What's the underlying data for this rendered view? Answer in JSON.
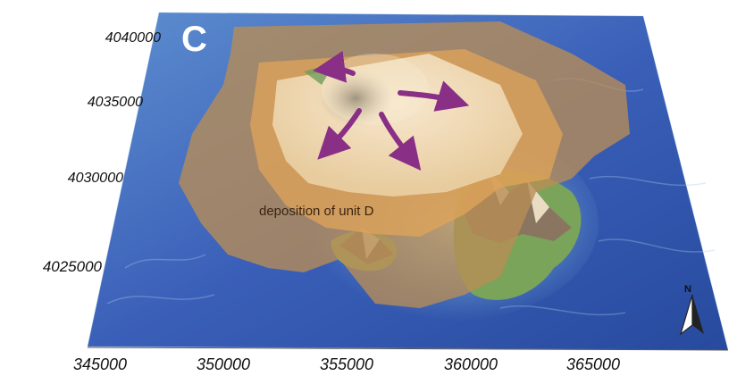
{
  "panel_label": "C",
  "annotation": "deposition of unit D",
  "north_label": "N",
  "axes": {
    "y_ticks": [
      "4040000",
      "4035000",
      "4030000",
      "4025000"
    ],
    "x_ticks": [
      "345000",
      "350000",
      "355000",
      "360000",
      "365000"
    ]
  },
  "colors": {
    "sea_deep": "#2f4fa8",
    "sea_shallow": "#7fb6d6",
    "deposit_outer": "#b98d55",
    "deposit_inner": "#f2d9b0",
    "land_green": "#7aa45a",
    "flow_arrows": "#8a2f86"
  },
  "icons": [
    "north-arrow-icon",
    "flow-arrow-icon"
  ]
}
